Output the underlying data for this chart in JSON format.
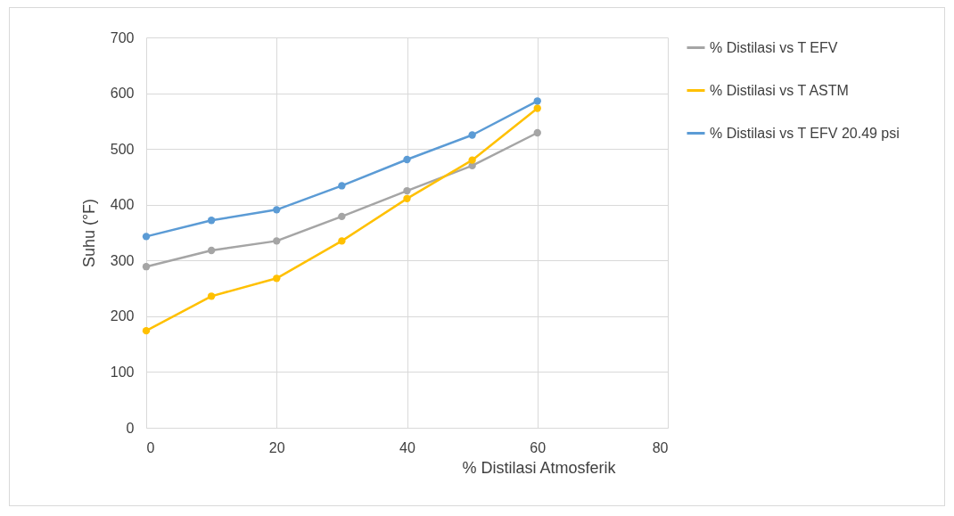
{
  "chart_data": {
    "type": "line",
    "xlabel": "% Distilasi Atmosferik",
    "ylabel": "Suhu (°F)",
    "x": [
      0,
      10,
      20,
      30,
      40,
      50,
      60
    ],
    "xlim": [
      0,
      80
    ],
    "xticks": [
      0,
      20,
      40,
      60,
      80
    ],
    "ylim": [
      0,
      700
    ],
    "yticks": [
      0,
      100,
      200,
      300,
      400,
      500,
      600,
      700
    ],
    "grid": true,
    "legend": "right",
    "marker": "circle",
    "series": [
      {
        "name": "% Distilasi vs T EFV",
        "color": "#a5a5a5",
        "values": [
          289,
          318,
          335,
          379,
          425,
          470,
          529
        ]
      },
      {
        "name": "% Distilasi vs T ASTM",
        "color": "#ffc000",
        "values": [
          174,
          236,
          268,
          335,
          411,
          480,
          573
        ]
      },
      {
        "name": "% Distilasi vs T EFV 20.49 psi",
        "color": "#5b9bd5",
        "values": [
          343,
          372,
          391,
          434,
          481,
          525,
          586
        ]
      }
    ]
  }
}
